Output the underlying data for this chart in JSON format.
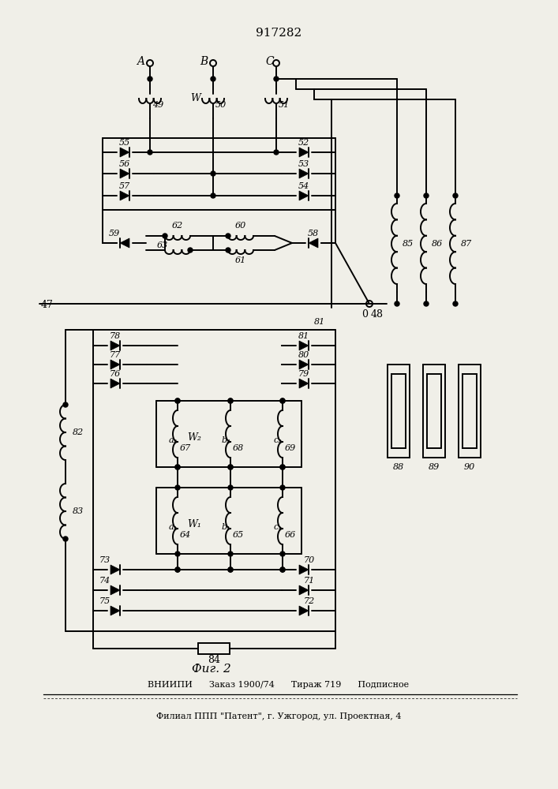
{
  "title": "917282",
  "fig_caption": "Фиг. 2",
  "footer_line1": "ВНИИПИ      Заказ 1900/74      Тираж 719      Подписное",
  "footer_line2": "Филиал ППП \"Патент\", г. Ужгород, ул. Проектная, 4",
  "bg_color": "#f0efe8",
  "line_color": "#000000",
  "lw": 1.4
}
